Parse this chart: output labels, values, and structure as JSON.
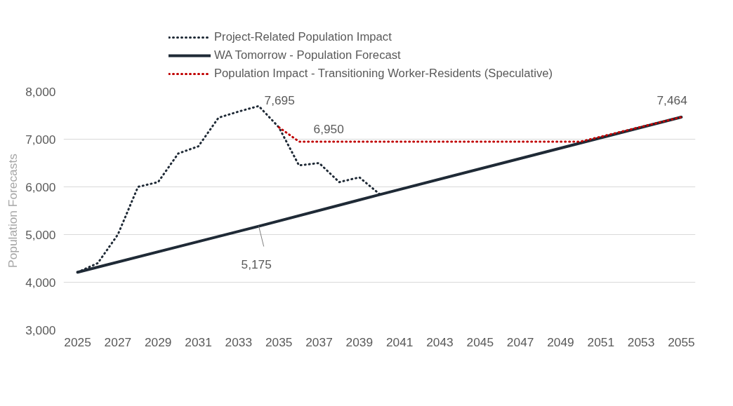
{
  "chart_data": {
    "type": "line",
    "ylabel": "Population Forecasts",
    "x": [
      2025,
      2026,
      2027,
      2028,
      2029,
      2030,
      2031,
      2032,
      2033,
      2034,
      2035,
      2036,
      2037,
      2038,
      2039,
      2040
    ],
    "series": [
      {
        "name": "Project-Related Population Impact",
        "color": "#1f2a36",
        "line_style": "dotted",
        "values": [
          4210,
          4400,
          5000,
          6000,
          6100,
          6700,
          6850,
          7450,
          7580,
          7695,
          7250,
          6450,
          6500,
          6100,
          6200,
          5850
        ]
      },
      {
        "name": "WA Tomorrow - Population Forecast",
        "color": "#1f2a36",
        "line_style": "solid",
        "x": [
          2025,
          2034,
          2040,
          2055
        ],
        "values": [
          4210,
          5175,
          5837,
          7464
        ]
      },
      {
        "name": "Population Impact - Transitioning Worker-Residents (Speculative)",
        "color": "#c00000",
        "line_style": "dotted",
        "x": [
          2035,
          2036,
          2050,
          2055
        ],
        "values": [
          7250,
          6950,
          6950,
          7464
        ]
      }
    ],
    "xlim": [
      2024.3,
      2055.7
    ],
    "xticks": [
      2025,
      2027,
      2029,
      2031,
      2033,
      2035,
      2037,
      2039,
      2041,
      2043,
      2045,
      2047,
      2049,
      2051,
      2053,
      2055
    ],
    "ylim": [
      3000,
      8000
    ],
    "yticks": [
      {
        "value": 3000,
        "label": "3,000"
      },
      {
        "value": 4000,
        "label": "4,000"
      },
      {
        "value": 5000,
        "label": "5,000"
      },
      {
        "value": 6000,
        "label": "6,000"
      },
      {
        "value": 7000,
        "label": "7,000"
      },
      {
        "value": 8000,
        "label": "8,000"
      }
    ],
    "grid": "y",
    "legend": "top left",
    "annotations": [
      {
        "text": "7,695",
        "x": 2034,
        "y": 7695
      },
      {
        "text": "6,950",
        "x": 2037,
        "y": 6950
      },
      {
        "text": "5,175",
        "x": 2034,
        "y": 5175
      },
      {
        "text": "7,464",
        "x": 2055,
        "y": 7464
      }
    ]
  }
}
